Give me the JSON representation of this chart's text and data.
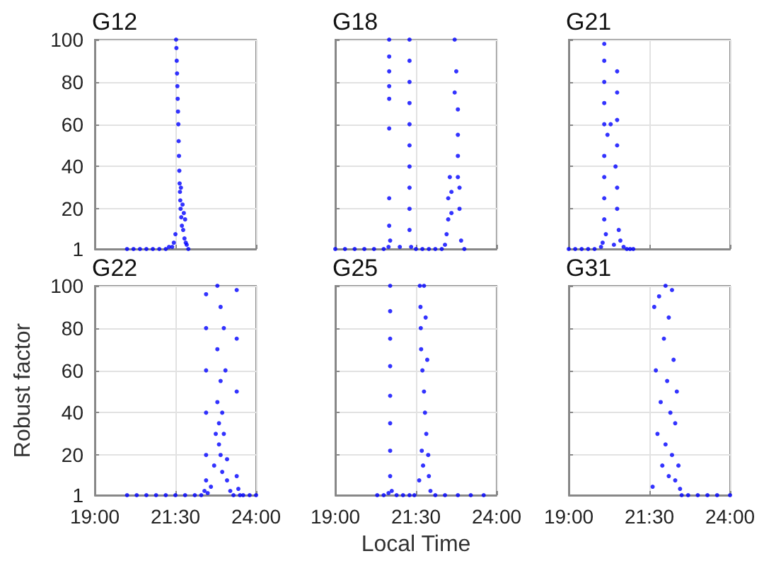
{
  "chart_data": [
    {
      "type": "scatter",
      "title": "G12",
      "color": "#0000ff",
      "marker": "circle",
      "grid": true,
      "tick_labels": "y",
      "xlim": [
        19,
        24
      ],
      "xticks": [
        {
          "value": 19,
          "label": null
        },
        {
          "value": 21.5,
          "label": null
        },
        {
          "value": 24,
          "label": null
        }
      ],
      "ylim": [
        1,
        100
      ],
      "yticks": [
        1,
        20,
        40,
        60,
        80,
        100
      ],
      "x": [
        20.0,
        20.2,
        20.4,
        20.6,
        20.8,
        21.0,
        21.2,
        21.3,
        21.4,
        21.45,
        21.5,
        21.52,
        21.53,
        21.54,
        21.55,
        21.56,
        21.57,
        21.58,
        21.59,
        21.6,
        21.61,
        21.62,
        21.63,
        21.64,
        21.65,
        21.66,
        21.67,
        21.68,
        21.7,
        21.72,
        21.74,
        21.76,
        21.78,
        21.8,
        21.82,
        21.85,
        21.9
      ],
      "values": [
        1,
        1,
        1,
        1,
        1,
        1,
        1,
        2,
        2,
        4,
        8,
        100,
        96,
        90,
        84,
        78,
        72,
        66,
        60,
        52,
        45,
        38,
        32,
        28,
        24,
        20,
        30,
        16,
        12,
        22,
        10,
        18,
        6,
        15,
        4,
        3,
        1
      ]
    },
    {
      "type": "scatter",
      "title": "G18",
      "color": "#0000ff",
      "marker": "circle",
      "grid": true,
      "tick_labels": false,
      "xlim": [
        19,
        24
      ],
      "xticks": [
        {
          "value": 19,
          "label": null
        },
        {
          "value": 21.5,
          "label": null
        },
        {
          "value": 24,
          "label": null
        }
      ],
      "ylim": [
        1,
        100
      ],
      "yticks": [
        1,
        20,
        40,
        60,
        80,
        100
      ],
      "x": [
        19.0,
        19.3,
        19.6,
        19.9,
        20.2,
        20.5,
        20.65,
        20.67,
        20.67,
        20.67,
        20.67,
        20.67,
        20.67,
        20.67,
        20.67,
        20.7,
        21.0,
        21.3,
        21.3,
        21.3,
        21.3,
        21.3,
        21.3,
        21.3,
        21.3,
        21.3,
        21.3,
        21.35,
        21.5,
        21.7,
        21.9,
        22.1,
        22.3,
        22.4,
        22.45,
        22.5,
        22.5,
        22.55,
        22.6,
        22.6,
        22.7,
        22.7,
        22.75,
        22.8,
        22.8,
        22.8,
        22.8,
        22.85,
        22.85,
        22.9,
        23.0
      ],
      "values": [
        1,
        1,
        1,
        1,
        1,
        1,
        2,
        100,
        92,
        85,
        78,
        72,
        58,
        25,
        12,
        5,
        2,
        100,
        90,
        80,
        70,
        60,
        50,
        40,
        30,
        20,
        10,
        2,
        1,
        1,
        1,
        1,
        1,
        3,
        8,
        15,
        25,
        35,
        28,
        18,
        100,
        75,
        85,
        67,
        55,
        45,
        35,
        30,
        20,
        5,
        1
      ]
    },
    {
      "type": "scatter",
      "title": "G21",
      "color": "#0000ff",
      "marker": "circle",
      "grid": true,
      "tick_labels": false,
      "xlim": [
        19,
        24
      ],
      "xticks": [
        {
          "value": 19,
          "label": null
        },
        {
          "value": 21.5,
          "label": null
        },
        {
          "value": 24,
          "label": null
        }
      ],
      "ylim": [
        1,
        100
      ],
      "yticks": [
        1,
        20,
        40,
        60,
        80,
        100
      ],
      "x": [
        19.0,
        19.2,
        19.4,
        19.6,
        19.8,
        20.0,
        20.05,
        20.1,
        20.1,
        20.1,
        20.1,
        20.1,
        20.1,
        20.1,
        20.1,
        20.1,
        20.15,
        20.2,
        20.3,
        20.4,
        20.45,
        20.5,
        20.5,
        20.5,
        20.5,
        20.5,
        20.5,
        20.55,
        20.6,
        20.7,
        20.8,
        20.9,
        21.0
      ],
      "values": [
        1,
        1,
        1,
        1,
        1,
        2,
        4,
        98,
        90,
        80,
        70,
        60,
        45,
        35,
        25,
        15,
        8,
        55,
        60,
        3,
        40,
        85,
        75,
        62,
        50,
        30,
        20,
        10,
        5,
        2,
        1,
        1,
        1
      ]
    },
    {
      "type": "scatter",
      "title": "G22",
      "color": "#0000ff",
      "marker": "circle",
      "grid": true,
      "ylabel": "Robust factor",
      "xlim": [
        19,
        24
      ],
      "xticks": [
        {
          "value": 19,
          "label": "19:00"
        },
        {
          "value": 21.5,
          "label": "21:30"
        },
        {
          "value": 24,
          "label": "24:00"
        }
      ],
      "ylim": [
        1,
        100
      ],
      "yticks": [
        1,
        20,
        40,
        60,
        80,
        100
      ],
      "x": [
        20.0,
        20.3,
        20.6,
        20.9,
        21.2,
        21.5,
        21.8,
        22.1,
        22.3,
        22.4,
        22.45,
        22.45,
        22.45,
        22.45,
        22.45,
        22.45,
        22.5,
        22.6,
        22.7,
        22.75,
        22.8,
        22.8,
        22.8,
        22.85,
        22.85,
        22.9,
        22.9,
        22.9,
        22.95,
        22.95,
        23.0,
        23.0,
        23.05,
        23.1,
        23.1,
        23.2,
        23.3,
        23.4,
        23.4,
        23.4,
        23.4,
        23.45,
        23.5,
        23.6,
        23.8,
        24.0
      ],
      "values": [
        1,
        1,
        1,
        1,
        1,
        1,
        1,
        1,
        1,
        3,
        96,
        80,
        60,
        40,
        20,
        8,
        2,
        5,
        15,
        30,
        100,
        70,
        45,
        35,
        25,
        90,
        55,
        20,
        40,
        12,
        80,
        30,
        60,
        18,
        8,
        3,
        1,
        98,
        75,
        50,
        10,
        4,
        1,
        1,
        1,
        1
      ]
    },
    {
      "type": "scatter",
      "title": "G25",
      "color": "#0000ff",
      "marker": "circle",
      "grid": true,
      "tick_labels": "x",
      "xlabel": "Local Time",
      "xlim": [
        19,
        24
      ],
      "xticks": [
        {
          "value": 19,
          "label": "19:00"
        },
        {
          "value": 21.5,
          "label": "21:30"
        },
        {
          "value": 24,
          "label": "24:00"
        }
      ],
      "ylim": [
        1,
        100
      ],
      "yticks": [
        1,
        20,
        40,
        60,
        80,
        100
      ],
      "x": [
        20.3,
        20.5,
        20.65,
        20.7,
        20.7,
        20.7,
        20.7,
        20.7,
        20.7,
        20.7,
        20.7,
        20.75,
        20.9,
        21.1,
        21.3,
        21.45,
        21.6,
        21.62,
        21.64,
        21.65,
        21.66,
        21.68,
        21.7,
        21.72,
        21.75,
        21.75,
        21.78,
        21.8,
        21.82,
        21.85,
        21.88,
        21.9,
        21.95,
        22.1,
        22.4,
        22.8,
        23.2,
        23.6
      ],
      "values": [
        1,
        1,
        2,
        100,
        88,
        75,
        62,
        48,
        35,
        22,
        10,
        3,
        1,
        1,
        1,
        1,
        8,
        100,
        90,
        80,
        70,
        22,
        60,
        15,
        100,
        50,
        40,
        85,
        30,
        65,
        20,
        10,
        3,
        1,
        1,
        1,
        1,
        1
      ]
    },
    {
      "type": "scatter",
      "title": "G31",
      "color": "#0000ff",
      "marker": "circle",
      "grid": true,
      "tick_labels": "x",
      "xlim": [
        19,
        24
      ],
      "xticks": [
        {
          "value": 19,
          "label": "19:00"
        },
        {
          "value": 21.5,
          "label": "21:30"
        },
        {
          "value": 24,
          "label": "24:00"
        }
      ],
      "ylim": [
        1,
        100
      ],
      "yticks": [
        1,
        20,
        40,
        60,
        80,
        100
      ],
      "x": [
        21.6,
        21.65,
        21.7,
        21.75,
        21.8,
        21.85,
        21.9,
        21.95,
        22.0,
        22.0,
        22.05,
        22.1,
        22.1,
        22.15,
        22.2,
        22.2,
        22.25,
        22.3,
        22.3,
        22.35,
        22.4,
        22.45,
        22.5,
        22.7,
        23.0,
        23.3,
        23.6,
        24.0
      ],
      "values": [
        5,
        90,
        60,
        30,
        95,
        45,
        15,
        75,
        100,
        25,
        55,
        85,
        10,
        40,
        98,
        20,
        65,
        35,
        8,
        50,
        15,
        4,
        1,
        1,
        1,
        1,
        1,
        1
      ]
    }
  ]
}
